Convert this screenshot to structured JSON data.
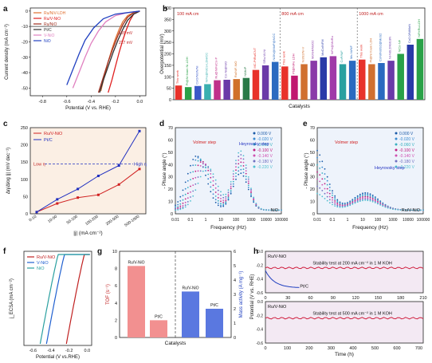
{
  "panels": {
    "a": {
      "letter": "a",
      "legend": [
        "Ru/NiV-LDH",
        "Ru/V-NiO",
        "Ru/NiO",
        "Pt/C",
        "V-NiO",
        "NiO"
      ],
      "annotations": [
        "155 mV",
        "227 mV"
      ],
      "xticks": [
        "-0.8",
        "-0.6",
        "-0.4",
        "-0.2",
        "0.0"
      ],
      "yticks": [
        "0",
        "-10",
        "-20",
        "-30",
        "-40",
        "-50"
      ]
    },
    "b": {
      "letter": "b",
      "sections": [
        "100 mA cm",
        "800 mA cm",
        "1000 mA cm"
      ],
      "this_work": "This work"
    },
    "c": {
      "letter": "c",
      "legend": [
        "Ru/V-NiO",
        "Pt/C"
      ],
      "low_label": "Low η",
      "high_label": "High η"
    },
    "d": {
      "letter": "d",
      "volmer": "Volmer step",
      "heyrovsky": "Heyrovsky step",
      "sample": "NiO",
      "potentials": [
        "0.000 V",
        "-0.020 V",
        "-0.060 V",
        "-0.100 V",
        "-0.140 V",
        "-0.180 V",
        "-0.220 V"
      ]
    },
    "e": {
      "letter": "e",
      "volmer": "Volmer step",
      "heyrovsky": "Heyrovsky step",
      "sample": "Ru/V-NiO",
      "potentials": [
        "0.000 V",
        "-0.020 V",
        "-0.060 V",
        "-0.100 V",
        "-0.140 V",
        "-0.180 V",
        "-0.220 V"
      ]
    },
    "f": {
      "letter": "f",
      "legend": [
        "Ru/V-NiO",
        "V-NiO",
        "NiO"
      ],
      "xlabel": "Potential (V vs.RHE)",
      "ylabel": "j_ECSA (mA cm⁻²)",
      "xticks": [
        "-0.6",
        "-0.4",
        "-0.2",
        "0.0"
      ]
    },
    "g": {
      "letter": "g",
      "xlabel": "Catalysts",
      "ylabel_left": "TOF (s⁻¹)",
      "ylabel_right": "Mass activity (A mg⁻¹)",
      "bar_labels": [
        "Ru/V-NiO",
        "Pt/C",
        "Ru/V-NiO",
        "Pt/C"
      ]
    },
    "h": {
      "letter": "h",
      "top_sample": "Ru/V-NiO",
      "top_text": "Stability test at 200 mA cm⁻² in 1 M KOH",
      "top_ptc": "Pt/C",
      "bottom_sample": "Ru/V-NiO",
      "bottom_text": "Stability test at 500 mA cm⁻² in 1 M KOH",
      "xlabel": "Time (h)",
      "ylabel": "Potential (V vs. RHE)"
    }
  },
  "chart_data": [
    {
      "panel": "a",
      "type": "line",
      "xlabel": "Potential (V vs. RHE)",
      "ylabel": "Current density (mA cm⁻²)",
      "xlim": [
        -0.9,
        0.05
      ],
      "ylim": [
        -55,
        2
      ],
      "series": [
        {
          "name": "Ru/NiV-LDH",
          "color": "#e07030",
          "x": [
            0.0,
            -0.05,
            -0.1,
            -0.14,
            -0.17,
            -0.2,
            -0.23,
            -0.26,
            -0.29,
            -0.32
          ],
          "y": [
            0,
            -1,
            -3,
            -7,
            -12,
            -18,
            -25,
            -33,
            -42,
            -52
          ]
        },
        {
          "name": "Ru/V-NiO",
          "color": "#e02020",
          "x": [
            0.0,
            -0.05,
            -0.08,
            -0.11,
            -0.14,
            -0.17,
            -0.2,
            -0.23,
            -0.26
          ],
          "y": [
            0,
            -2,
            -6,
            -12,
            -19,
            -27,
            -36,
            -45,
            -53
          ]
        },
        {
          "name": "Ru/NiO",
          "color": "#a03020",
          "x": [
            0.0,
            -0.05,
            -0.1,
            -0.14,
            -0.18,
            -0.22,
            -0.26,
            -0.3,
            -0.34
          ],
          "y": [
            0,
            -1,
            -4,
            -9,
            -16,
            -24,
            -33,
            -43,
            -53
          ]
        },
        {
          "name": "Pt/C",
          "color": "#303030",
          "x": [
            0.0,
            -0.05,
            -0.1,
            -0.14,
            -0.18,
            -0.22,
            -0.26,
            -0.3,
            -0.33
          ],
          "y": [
            0,
            -2,
            -6,
            -12,
            -19,
            -27,
            -36,
            -45,
            -53
          ]
        },
        {
          "name": "V-NiO",
          "color": "#e080c0",
          "x": [
            0.0,
            -0.1,
            -0.2,
            -0.28,
            -0.34,
            -0.4,
            -0.45,
            -0.5,
            -0.55
          ],
          "y": [
            0,
            -1,
            -3,
            -7,
            -13,
            -21,
            -30,
            -40,
            -50
          ]
        },
        {
          "name": "NiO",
          "color": "#2040c0",
          "x": [
            0.0,
            -0.1,
            -0.2,
            -0.3,
            -0.38,
            -0.45,
            -0.5,
            -0.55,
            -0.6
          ],
          "y": [
            0,
            -1,
            -2,
            -5,
            -11,
            -19,
            -28,
            -38,
            -48
          ]
        }
      ]
    },
    {
      "panel": "b",
      "type": "bar",
      "xlabel": "Catalysts",
      "ylabel": "Overpotential (mV)",
      "ylim": [
        0,
        400
      ],
      "yticks": [
        0,
        50,
        100,
        150,
        200,
        250,
        300,
        350,
        400
      ],
      "categories": [
        "This work",
        "Pt@Ni foam Ni-LDH",
        "CoO/Ni3N/Ni",
        "NiFe@NiCo-LDH/CC",
        "Ru@NiFeCo-P",
        "Co-Ni@NiO",
        "Ru/NiF-NiO",
        "NiMoP",
        "MC-PtRu/CNT",
        "SRu-W-Ni",
        "Ni3N@MoP@NCC",
        "This work",
        "Pt@NiFe LDH",
        "Ni3S2/Ni-V",
        "MoNi4/MoO2",
        "MoCo/NFM",
        "NiFe@MoRu",
        "CoP/NiF",
        "Mo-Ni/NF",
        "This work",
        "Pt@Ni foam LDH",
        "CoNi/Ni3S2@MoS2",
        "Ni-Ni0.2Mo0.8N",
        "NiCo-NF",
        "Co2.0/NiMoN",
        "NiFeRu-LDH"
      ],
      "values": [
        62,
        55,
        60,
        68,
        85,
        87,
        90,
        95,
        130,
        150,
        165,
        145,
        105,
        155,
        170,
        185,
        190,
        155,
        170,
        175,
        155,
        160,
        170,
        200,
        240,
        265
      ],
      "colors": [
        "#e8322b",
        "#2aa148",
        "#3a58c8",
        "#3ab0b0",
        "#c0308a",
        "#6a3aa8",
        "#d0702a",
        "#2a7a48",
        "#e8322b",
        "#6a3aa8",
        "#2a6ac0",
        "#e8322b",
        "#c01870",
        "#d07030",
        "#8a3aa8",
        "#2a3aa8",
        "#a03aa8",
        "#2aa0a0",
        "#2a6ac0",
        "#e8322b",
        "#d07030",
        "#2a6ac0",
        "#6a3aa8",
        "#2aa148",
        "#2a3aa8",
        "#2aa148"
      ]
    },
    {
      "panel": "c",
      "type": "line",
      "xlabel": "|j| (mA cm⁻²)",
      "ylabel": "Δη/Δlog |j| (mV dec⁻¹)",
      "categories": [
        "0-10",
        "10-50",
        "50-100",
        "100-200",
        "200-500",
        "500-1000"
      ],
      "ylim": [
        0,
        250
      ],
      "series": [
        {
          "name": "Ru/V-NiO",
          "color": "#d02020",
          "values": [
            5,
            30,
            47,
            55,
            85,
            130
          ]
        },
        {
          "name": "Pt/C",
          "color": "#2030c0",
          "values": [
            5,
            42,
            72,
            110,
            140,
            240
          ]
        }
      ]
    },
    {
      "panel": "d",
      "type": "scatter",
      "xlabel": "Frequency (Hz)",
      "ylabel": "- Phase angle (°)",
      "xscale": "log",
      "xlim": [
        0.01,
        100000
      ],
      "ylim": [
        0,
        70
      ],
      "series_names": [
        "0.000 V",
        "-0.020 V",
        "-0.060 V",
        "-0.100 V",
        "-0.140 V",
        "-0.180 V",
        "-0.220 V"
      ]
    },
    {
      "panel": "e",
      "type": "scatter",
      "xlabel": "Frequency (Hz)",
      "ylabel": "- Phase angle (°)",
      "xscale": "log",
      "xlim": [
        0.01,
        100000
      ],
      "ylim": [
        0,
        70
      ],
      "series_names": [
        "0.000 V",
        "-0.020 V",
        "-0.060 V",
        "-0.100 V",
        "-0.140 V",
        "-0.180 V",
        "-0.220 V"
      ]
    },
    {
      "panel": "g",
      "type": "bar",
      "categories": [
        "Ru/V-NiO",
        "Pt/C",
        "Ru/V-NiO",
        "Pt/C"
      ],
      "tof_values": [
        8.3,
        2.0
      ],
      "mass_activity_values": [
        3.2,
        2.0
      ],
      "ylim_left": [
        0,
        10
      ],
      "ylim_right": [
        0,
        6
      ]
    },
    {
      "panel": "h",
      "type": "line",
      "top": {
        "xlim": [
          0,
          210
        ],
        "ylim": [
          -0.6,
          0.0
        ],
        "xticks": [
          0,
          30,
          60,
          90,
          120,
          150,
          180,
          210
        ]
      },
      "bottom": {
        "xlim": [
          0,
          720
        ],
        "ylim": [
          -0.6,
          0.0
        ],
        "xticks": [
          0,
          100,
          200,
          300,
          400,
          500,
          600,
          700
        ]
      }
    }
  ],
  "colors": {
    "potentials": [
      "#1a5aa8",
      "#3a8ad0",
      "#38b0c0",
      "#c02080",
      "#d050b0",
      "#7070c0",
      "#50c0d0"
    ]
  }
}
